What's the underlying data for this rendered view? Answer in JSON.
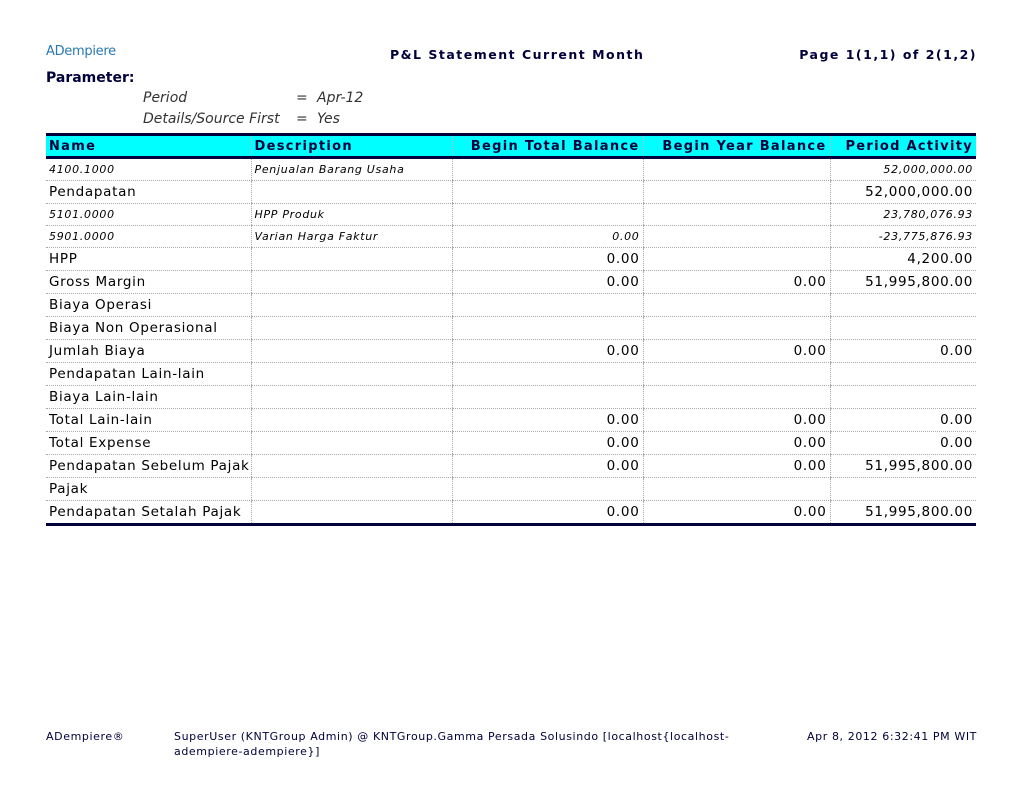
{
  "header": {
    "logo": "ADempiere",
    "title": "P&L Statement Current Month",
    "page": "Page 1(1,1) of 2(1,2)"
  },
  "parameters": {
    "label": "Parameter:",
    "items": [
      {
        "name": "Period",
        "eq": "=",
        "value": "Apr-12"
      },
      {
        "name": "Details/Source First",
        "eq": "=",
        "value": "Yes"
      }
    ]
  },
  "table": {
    "columns": [
      "Name",
      "Description",
      "Begin Total Balance",
      "Begin Year Balance",
      "Period Activity"
    ],
    "rows": [
      {
        "detail": true,
        "cells": [
          "4100.1000",
          "Penjualan Barang Usaha",
          "",
          "",
          "52,000,000.00"
        ]
      },
      {
        "detail": false,
        "cells": [
          "Pendapatan",
          "",
          "",
          "",
          "52,000,000.00"
        ]
      },
      {
        "detail": true,
        "cells": [
          "5101.0000",
          "HPP Produk",
          "",
          "",
          "23,780,076.93"
        ]
      },
      {
        "detail": true,
        "cells": [
          "5901.0000",
          "Varian Harga Faktur",
          "0.00",
          "",
          "-23,775,876.93"
        ]
      },
      {
        "detail": false,
        "cells": [
          "HPP",
          "",
          "0.00",
          "",
          "4,200.00"
        ]
      },
      {
        "detail": false,
        "cells": [
          "Gross Margin",
          "",
          "0.00",
          "0.00",
          "51,995,800.00"
        ]
      },
      {
        "detail": false,
        "cells": [
          "Biaya Operasi",
          "",
          "",
          "",
          ""
        ]
      },
      {
        "detail": false,
        "cells": [
          "Biaya Non Operasional",
          "",
          "",
          "",
          ""
        ]
      },
      {
        "detail": false,
        "cells": [
          "Jumlah Biaya",
          "",
          "0.00",
          "0.00",
          "0.00"
        ]
      },
      {
        "detail": false,
        "cells": [
          "Pendapatan Lain-lain",
          "",
          "",
          "",
          ""
        ]
      },
      {
        "detail": false,
        "cells": [
          "Biaya Lain-lain",
          "",
          "",
          "",
          ""
        ]
      },
      {
        "detail": false,
        "cells": [
          "Total Lain-lain",
          "",
          "0.00",
          "0.00",
          "0.00"
        ]
      },
      {
        "detail": false,
        "cells": [
          "Total Expense",
          "",
          "0.00",
          "0.00",
          "0.00"
        ]
      },
      {
        "detail": false,
        "cells": [
          "Pendapatan Sebelum Pajak",
          "",
          "0.00",
          "0.00",
          "51,995,800.00"
        ]
      },
      {
        "detail": false,
        "cells": [
          "Pajak",
          "",
          "",
          "",
          ""
        ]
      },
      {
        "detail": false,
        "cells": [
          "Pendapatan Setalah Pajak",
          "",
          "0.00",
          "0.00",
          "51,995,800.00"
        ]
      }
    ]
  },
  "footer": {
    "left": "ADempiere®",
    "center": "SuperUser (KNTGroup Admin) @ KNTGroup.Gamma Persada Solusindo [localhost{localhost-adempiere-adempiere}]",
    "right": "Apr 8, 2012 6:32:41 PM WIT"
  }
}
